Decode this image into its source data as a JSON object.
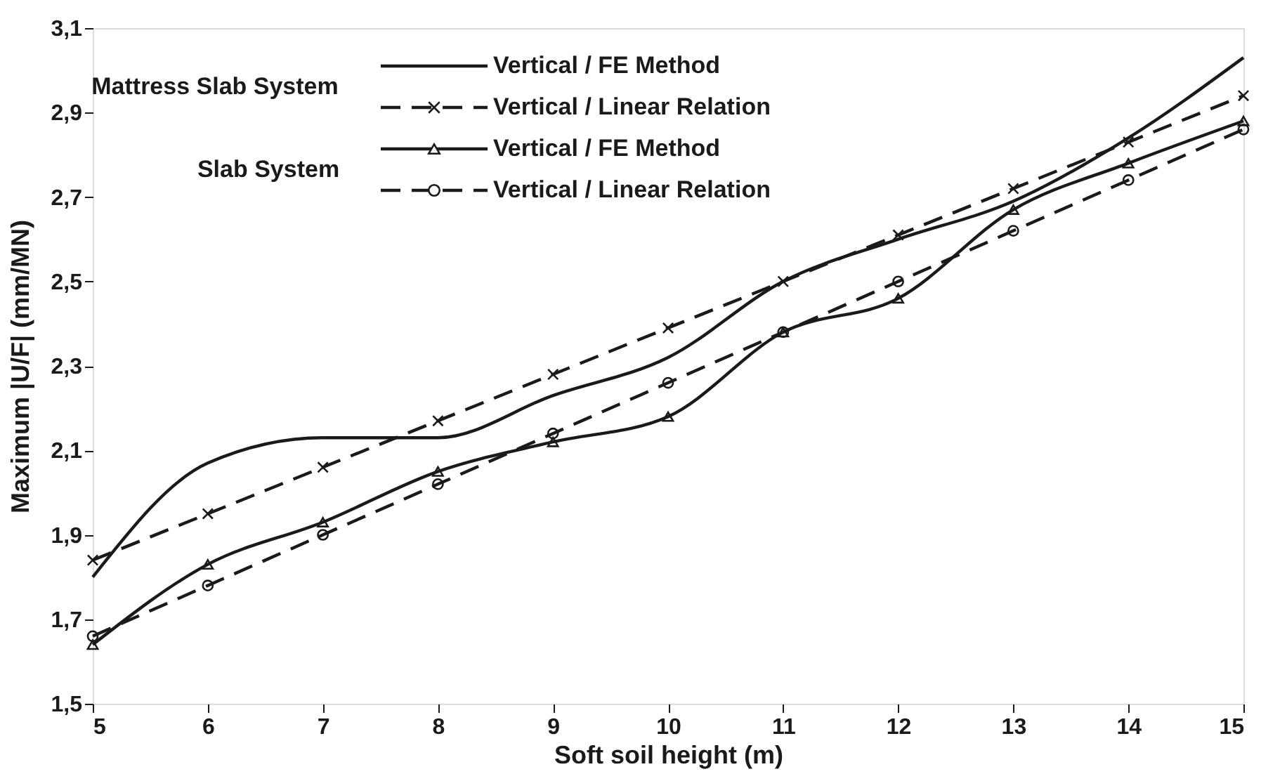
{
  "chart_data": {
    "type": "line",
    "xlabel": "Soft soil height (m)",
    "ylabel": "Maximum |U/F| (mm/MN)",
    "x": [
      5,
      6,
      7,
      8,
      9,
      10,
      11,
      12,
      13,
      14,
      15
    ],
    "series": [
      {
        "name": "Vertical / FE Method",
        "color": "#1a1a1a",
        "marker": "none",
        "line_style": "solid",
        "values": [
          1.8,
          2.07,
          2.13,
          2.13,
          2.23,
          2.32,
          2.5,
          2.6,
          2.69,
          2.84,
          3.03
        ]
      },
      {
        "name": "Vertical / Linear Relation",
        "color": "#1a1a1a",
        "marker": "cross",
        "line_style": "dashed",
        "values": [
          1.84,
          1.95,
          2.06,
          2.17,
          2.28,
          2.39,
          2.5,
          2.61,
          2.72,
          2.83,
          2.94
        ]
      },
      {
        "name": "Vertical / FE Method",
        "color": "#1a1a1a",
        "marker": "triangle",
        "line_style": "solid",
        "values": [
          1.64,
          1.83,
          1.93,
          2.05,
          2.12,
          2.18,
          2.38,
          2.46,
          2.67,
          2.78,
          2.88
        ]
      },
      {
        "name": "Vertical / Linear Relation",
        "color": "#1a1a1a",
        "marker": "circle",
        "line_style": "dashed",
        "values": [
          1.66,
          1.78,
          1.9,
          2.02,
          2.14,
          2.26,
          2.38,
          2.5,
          2.62,
          2.74,
          2.86
        ]
      }
    ],
    "annotations": [
      "Mattress Slab System",
      "Slab System"
    ],
    "xlim": [
      5,
      15
    ],
    "xticks": [
      5,
      6,
      7,
      8,
      9,
      10,
      11,
      12,
      13,
      14,
      15
    ],
    "ylim": [
      1.5,
      3.1
    ],
    "yticks": [
      {
        "value": 1.5,
        "label": "1,5"
      },
      {
        "value": 1.7,
        "label": "1,7"
      },
      {
        "value": 1.9,
        "label": "1,9"
      },
      {
        "value": 2.1,
        "label": "2,1"
      },
      {
        "value": 2.3,
        "label": "2,3"
      },
      {
        "value": 2.5,
        "label": "2,5"
      },
      {
        "value": 2.7,
        "label": "2,7"
      },
      {
        "value": 2.9,
        "label": "2,9"
      },
      {
        "value": 3.1,
        "label": "3,1"
      }
    ],
    "grid": false,
    "legend": "top"
  }
}
